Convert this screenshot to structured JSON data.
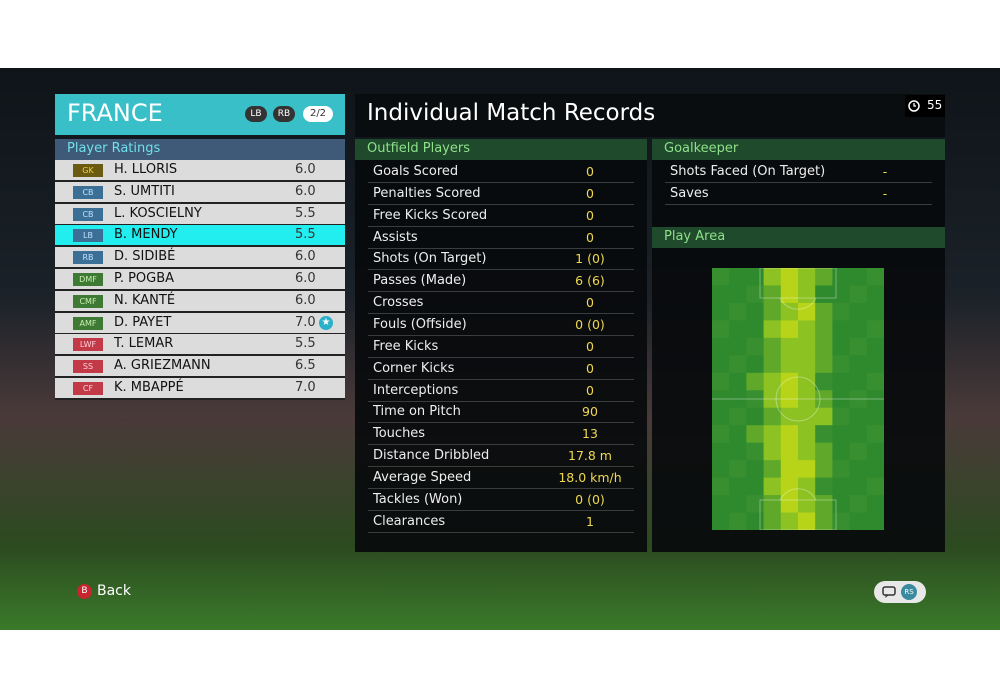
{
  "team": {
    "name": "FRANCE",
    "badges": [
      "LB",
      "RB"
    ],
    "page": "2/2"
  },
  "ratings": {
    "title": "Player Ratings",
    "players": [
      {
        "position": "GK",
        "name": "H. LLORIS",
        "rating": "6.0"
      },
      {
        "position": "CB",
        "name": "S. UMTITI",
        "rating": "6.0"
      },
      {
        "position": "CB",
        "name": "L. KOSCIELNY",
        "rating": "5.5"
      },
      {
        "position": "LB",
        "name": "B. MENDY",
        "rating": "5.5"
      },
      {
        "position": "RB",
        "name": "D. SIDIBÉ",
        "rating": "6.0"
      },
      {
        "position": "DMF",
        "name": "P. POGBA",
        "rating": "6.0"
      },
      {
        "position": "CMF",
        "name": "N. KANTÉ",
        "rating": "6.0"
      },
      {
        "position": "AMF",
        "name": "D. PAYET",
        "rating": "7.0"
      },
      {
        "position": "LWF",
        "name": "T. LEMAR",
        "rating": "5.5"
      },
      {
        "position": "SS",
        "name": "A. GRIEZMANN",
        "rating": "6.5"
      },
      {
        "position": "CF",
        "name": "K. MBAPPÉ",
        "rating": "7.0"
      }
    ]
  },
  "records": {
    "title": "Individual Match Records",
    "timer": "55",
    "outfield": {
      "title": "Outfield Players",
      "rows": [
        [
          "Goals Scored",
          "0"
        ],
        [
          "Penalties Scored",
          "0"
        ],
        [
          "Free Kicks Scored",
          "0"
        ],
        [
          "Assists",
          "0"
        ],
        [
          "Shots (On Target)",
          "1 (0)"
        ],
        [
          "Passes (Made)",
          "6 (6)"
        ],
        [
          "Crosses",
          "0"
        ],
        [
          "Fouls (Offside)",
          "0 (0)"
        ],
        [
          "Free Kicks",
          "0"
        ],
        [
          "Corner Kicks",
          "0"
        ],
        [
          "Interceptions",
          "0"
        ],
        [
          "Time on Pitch",
          "90"
        ],
        [
          "Touches",
          "13"
        ],
        [
          "Distance Dribbled",
          "17.8 m"
        ],
        [
          "Average Speed",
          "18.0 km/h"
        ],
        [
          "Tackles (Won)",
          "0 (0)"
        ],
        [
          "Clearances",
          "1"
        ]
      ]
    },
    "goalkeeper": {
      "title": "Goalkeeper",
      "rows": [
        [
          "Shots Faced (On Target)",
          "-"
        ],
        [
          "Saves",
          "-"
        ]
      ]
    },
    "play_area": {
      "title": "Play Area"
    }
  },
  "footer": {
    "back_button": "B",
    "back": "Back",
    "right_button": "RS"
  }
}
